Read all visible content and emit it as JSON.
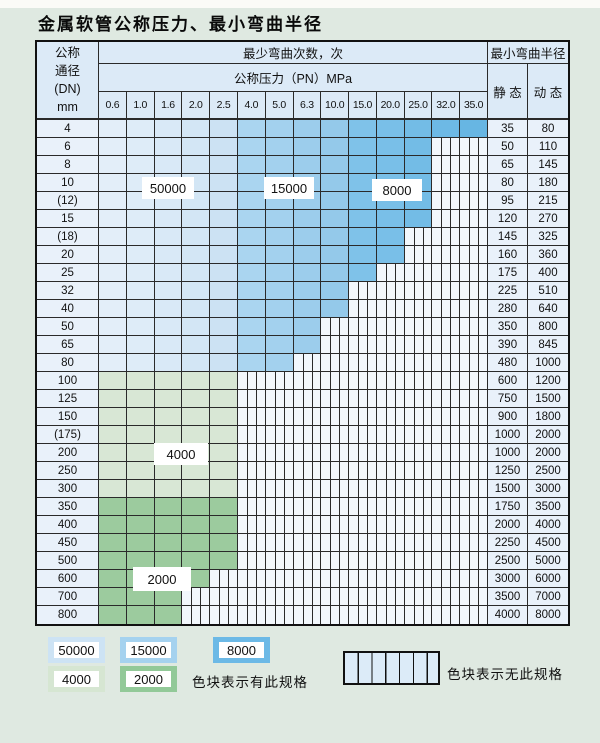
{
  "title": "金属软管公称压力、最小弯曲半径",
  "table": {
    "corner_header_lines": [
      "公称",
      "通径",
      "(DN)",
      "mm"
    ],
    "bend_cycles_header": "最少弯曲次数，次",
    "pressure_header": "公称压力（PN）MPa",
    "radius_header": "最小弯曲半径",
    "static_header": "静 态",
    "dynamic_header": "动 态",
    "pressure_columns": [
      "0.6",
      "1.0",
      "1.6",
      "2.0",
      "2.5",
      "4.0",
      "5.0",
      "6.3",
      "10.0",
      "15.0",
      "20.0",
      "25.0",
      "32.0",
      "35.0"
    ],
    "rows": [
      {
        "dn": "4",
        "colored_through": 13,
        "palette": "blue",
        "static": "35",
        "dynamic": "80"
      },
      {
        "dn": "6",
        "colored_through": 11,
        "palette": "blue",
        "static": "50",
        "dynamic": "110"
      },
      {
        "dn": "8",
        "colored_through": 11,
        "palette": "blue",
        "static": "65",
        "dynamic": "145"
      },
      {
        "dn": "10",
        "colored_through": 11,
        "palette": "blue",
        "static": "80",
        "dynamic": "180"
      },
      {
        "dn": "(12)",
        "colored_through": 11,
        "palette": "blue",
        "static": "95",
        "dynamic": "215"
      },
      {
        "dn": "15",
        "colored_through": 11,
        "palette": "blue",
        "static": "120",
        "dynamic": "270"
      },
      {
        "dn": "(18)",
        "colored_through": 10,
        "palette": "blue",
        "static": "145",
        "dynamic": "325"
      },
      {
        "dn": "20",
        "colored_through": 10,
        "palette": "blue",
        "static": "160",
        "dynamic": "360"
      },
      {
        "dn": "25",
        "colored_through": 9,
        "palette": "blue",
        "static": "175",
        "dynamic": "400"
      },
      {
        "dn": "32",
        "colored_through": 8,
        "palette": "blue",
        "static": "225",
        "dynamic": "510"
      },
      {
        "dn": "40",
        "colored_through": 8,
        "palette": "blue",
        "static": "280",
        "dynamic": "640"
      },
      {
        "dn": "50",
        "colored_through": 7,
        "palette": "blue",
        "static": "350",
        "dynamic": "800"
      },
      {
        "dn": "65",
        "colored_through": 7,
        "palette": "blue",
        "static": "390",
        "dynamic": "845"
      },
      {
        "dn": "80",
        "colored_through": 6,
        "palette": "blue",
        "static": "480",
        "dynamic": "1000"
      },
      {
        "dn": "100",
        "colored_through": 4,
        "palette": "g4000",
        "static": "600",
        "dynamic": "1200"
      },
      {
        "dn": "125",
        "colored_through": 4,
        "palette": "g4000",
        "static": "750",
        "dynamic": "1500"
      },
      {
        "dn": "150",
        "colored_through": 4,
        "palette": "g4000",
        "static": "900",
        "dynamic": "1800"
      },
      {
        "dn": "(175)",
        "colored_through": 4,
        "palette": "g4000",
        "static": "1000",
        "dynamic": "2000"
      },
      {
        "dn": "200",
        "colored_through": 4,
        "palette": "g4000",
        "static": "1000",
        "dynamic": "2000"
      },
      {
        "dn": "250",
        "colored_through": 4,
        "palette": "g4000",
        "static": "1250",
        "dynamic": "2500"
      },
      {
        "dn": "300",
        "colored_through": 4,
        "palette": "g4000",
        "static": "1500",
        "dynamic": "3000"
      },
      {
        "dn": "350",
        "colored_through": 4,
        "palette": "g2000",
        "static": "1750",
        "dynamic": "3500"
      },
      {
        "dn": "400",
        "colored_through": 4,
        "palette": "g2000",
        "static": "2000",
        "dynamic": "4000"
      },
      {
        "dn": "450",
        "colored_through": 4,
        "palette": "g2000",
        "static": "2250",
        "dynamic": "4500"
      },
      {
        "dn": "500",
        "colored_through": 4,
        "palette": "g2000",
        "static": "2500",
        "dynamic": "5000"
      },
      {
        "dn": "600",
        "colored_through": 3,
        "palette": "g2000",
        "static": "3000",
        "dynamic": "6000"
      },
      {
        "dn": "700",
        "colored_through": 2,
        "palette": "g2000",
        "static": "3500",
        "dynamic": "7000"
      },
      {
        "dn": "800",
        "colored_through": 2,
        "palette": "g2000",
        "static": "4000",
        "dynamic": "8000"
      }
    ]
  },
  "cycle_labels": {
    "l50000": "50000",
    "l15000": "15000",
    "l8000": "8000",
    "l4000": "4000",
    "l2000": "2000"
  },
  "legend": {
    "items": [
      {
        "label": "50000",
        "color": "#cde3f4"
      },
      {
        "label": "15000",
        "color": "#a5d2ef"
      },
      {
        "label": "8000",
        "color": "#6cb9e6"
      },
      {
        "label": "4000",
        "color": "#d6e6d2"
      },
      {
        "label": "2000",
        "color": "#92c998"
      }
    ],
    "has_spec_text": "色块表示有此规格",
    "no_spec_text": "色块表示无此规格"
  },
  "colors": {
    "zone_50000": [
      "#e3eef9",
      "#deecf8",
      "#d9e9f7",
      "#d3e6f5",
      "#cce2f3"
    ],
    "zone_15000": [
      "#aad5f0",
      "#a3d1ee",
      "#9ccdec",
      "#94c9ea"
    ],
    "zone_8000": [
      "#7fc2e9",
      "#79bfe8",
      "#73bce6",
      "#6db9e5",
      "#67b6e3"
    ],
    "zone_4000": "#d8e7d5",
    "zone_2000": "#9ccb9e",
    "striped_bg": "#f2f7fc",
    "header_bg": "#dceaf7",
    "label_col_bg": "#e9f1fa",
    "page_bg": "#dfe9e1",
    "grid_line": "#2a2a2a"
  }
}
